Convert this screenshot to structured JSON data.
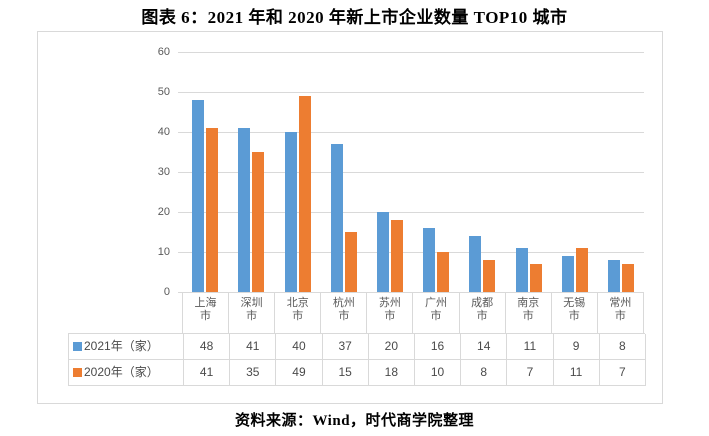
{
  "title": "图表 6：2021 年和 2020 年新上市企业数量 TOP10 城市",
  "source": "资料来源：Wind，时代商学院整理",
  "colors": {
    "series_2021": "#5B9BD5",
    "series_2020": "#ED7D31",
    "gridline": "#D9D9D9",
    "border": "#D9D9D9",
    "axis_text": "#595959",
    "table_text": "#4a4a4a"
  },
  "chart_data": {
    "type": "bar",
    "title": "图表 6：2021 年和 2020 年新上市企业数量 TOP10 城市",
    "categories": [
      "上海市",
      "深圳市",
      "北京市",
      "杭州市",
      "苏州市",
      "广州市",
      "成都市",
      "南京市",
      "无锡市",
      "常州市"
    ],
    "series": [
      {
        "name": "2021年（家）",
        "color": "#5B9BD5",
        "values": [
          48,
          41,
          40,
          37,
          20,
          16,
          14,
          11,
          9,
          8
        ]
      },
      {
        "name": "2020年（家）",
        "color": "#ED7D31",
        "values": [
          41,
          35,
          49,
          15,
          18,
          10,
          8,
          7,
          11,
          7
        ]
      }
    ],
    "xlabel": "",
    "ylabel": "",
    "ylim": [
      0,
      60
    ],
    "yticks": [
      0,
      10,
      20,
      30,
      40,
      50,
      60
    ],
    "grid": true,
    "legend_position": "data-table-below"
  }
}
